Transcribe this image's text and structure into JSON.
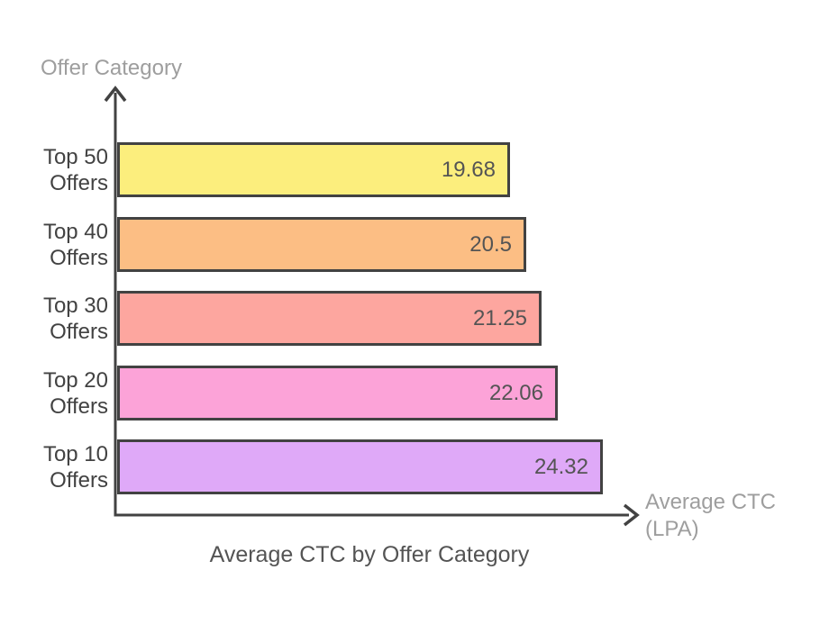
{
  "chart_data": {
    "type": "bar",
    "orientation": "horizontal",
    "title": "Average CTC by Offer Category",
    "xlabel": "Average CTC\n(LPA)",
    "ylabel": "Offer Category",
    "categories": [
      "Top 50\nOffers",
      "Top 40\nOffers",
      "Top 30\nOffers",
      "Top 20\nOffers",
      "Top 10\nOffers"
    ],
    "values": [
      19.68,
      20.5,
      21.25,
      22.06,
      24.32
    ],
    "value_labels": [
      "19.68",
      "20.5",
      "21.25",
      "22.06",
      "24.32"
    ],
    "bar_colors": [
      "#fcee7d",
      "#fcbe84",
      "#fda69f",
      "#fca3d8",
      "#dfa9f8"
    ],
    "bar_border_color": "#424242",
    "axis_color": "#424242",
    "category_label_color": "#424242",
    "value_label_color": "#545454",
    "muted_label_color": "#9e9e9e",
    "title_color": "#545454",
    "xlim": [
      0,
      26
    ],
    "grid": false,
    "legend": false,
    "bars_sorted_top_to_bottom": "Top 50 first, Top 10 last"
  }
}
